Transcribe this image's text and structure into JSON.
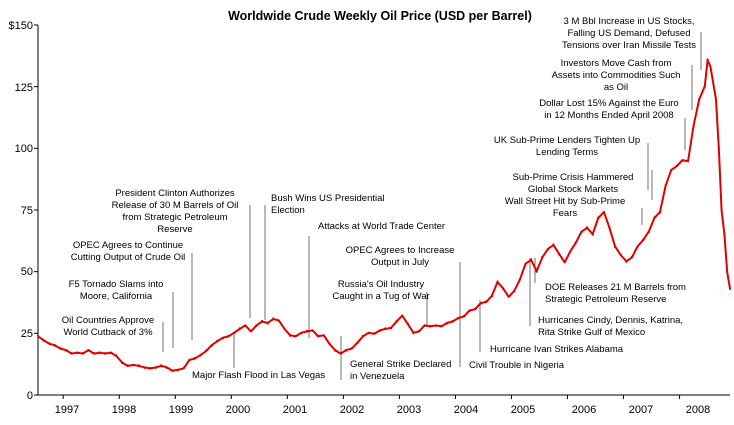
{
  "chart_data": {
    "type": "line",
    "title": "Worldwide Crude Weekly Oil Price (USD per Barrel)",
    "xlabel": "",
    "ylabel": "",
    "xlim": [
      1996.55,
      2008.9
    ],
    "ylim": [
      0,
      150
    ],
    "y_ticks": [
      {
        "value": 0,
        "label": "0"
      },
      {
        "value": 25,
        "label": "25"
      },
      {
        "value": 50,
        "label": "50"
      },
      {
        "value": 75,
        "label": "75"
      },
      {
        "value": 100,
        "label": "100"
      },
      {
        "value": 125,
        "label": "125"
      },
      {
        "value": 150,
        "label": "$150"
      }
    ],
    "x_ticks": [
      {
        "value": 1997,
        "label": "1997"
      },
      {
        "value": 1998,
        "label": "1998"
      },
      {
        "value": 1999,
        "label": "1999"
      },
      {
        "value": 2000,
        "label": "2000"
      },
      {
        "value": 2001,
        "label": "2001"
      },
      {
        "value": 2002,
        "label": "2002"
      },
      {
        "value": 2003,
        "label": "2003"
      },
      {
        "value": 2004,
        "label": "2004"
      },
      {
        "value": 2005,
        "label": "2005"
      },
      {
        "value": 2006,
        "label": "2006"
      },
      {
        "value": 2007,
        "label": "2007"
      },
      {
        "value": 2008,
        "label": "2008"
      }
    ],
    "grid": false,
    "series": [
      {
        "name": "Weekly crude oil price (USD/bbl)",
        "color": "#e00000",
        "x": [
          1996.55,
          1996.65,
          1996.75,
          1996.85,
          1996.95,
          1997.05,
          1997.15,
          1997.25,
          1997.35,
          1997.45,
          1997.55,
          1997.65,
          1997.75,
          1997.85,
          1997.95,
          1998.05,
          1998.15,
          1998.25,
          1998.35,
          1998.45,
          1998.55,
          1998.65,
          1998.75,
          1998.85,
          1998.95,
          1999.05,
          1999.15,
          1999.25,
          1999.35,
          1999.45,
          1999.55,
          1999.65,
          1999.75,
          1999.85,
          1999.95,
          2000.05,
          2000.15,
          2000.25,
          2000.35,
          2000.45,
          2000.55,
          2000.65,
          2000.75,
          2000.85,
          2000.95,
          2001.05,
          2001.15,
          2001.25,
          2001.35,
          2001.45,
          2001.55,
          2001.65,
          2001.75,
          2001.85,
          2001.95,
          2002.05,
          2002.15,
          2002.25,
          2002.35,
          2002.45,
          2002.55,
          2002.65,
          2002.75,
          2002.85,
          2002.95,
          2003.05,
          2003.15,
          2003.25,
          2003.35,
          2003.45,
          2003.55,
          2003.65,
          2003.75,
          2003.85,
          2003.95,
          2004.05,
          2004.15,
          2004.25,
          2004.35,
          2004.45,
          2004.55,
          2004.65,
          2004.75,
          2004.85,
          2004.95,
          2005.05,
          2005.15,
          2005.25,
          2005.35,
          2005.45,
          2005.55,
          2005.65,
          2005.75,
          2005.85,
          2005.95,
          2006.05,
          2006.15,
          2006.25,
          2006.35,
          2006.45,
          2006.55,
          2006.65,
          2006.75,
          2006.85,
          2006.95,
          2007.05,
          2007.15,
          2007.25,
          2007.35,
          2007.45,
          2007.55,
          2007.65,
          2007.75,
          2007.85,
          2007.95,
          2008.05,
          2008.15,
          2008.25,
          2008.35,
          2008.45,
          2008.5,
          2008.55,
          2008.65,
          2008.7,
          2008.75,
          2008.8,
          2008.85,
          2008.9
        ],
        "y": [
          24,
          22,
          21,
          20,
          19,
          18,
          17,
          17,
          17,
          18,
          17,
          17,
          17,
          17,
          16,
          13,
          12,
          12,
          12,
          11,
          11,
          11,
          12,
          11,
          10,
          10,
          11,
          14,
          15,
          16,
          18,
          20,
          22,
          23,
          24,
          25,
          27,
          28,
          26,
          28,
          30,
          29,
          31,
          30,
          27,
          24,
          24,
          25,
          26,
          26,
          24,
          24,
          21,
          18,
          17,
          18,
          19,
          21,
          24,
          25,
          25,
          26,
          27,
          27,
          30,
          32,
          29,
          25,
          26,
          28,
          28,
          28,
          28,
          29,
          30,
          31,
          32,
          34,
          35,
          37,
          38,
          40,
          46,
          43,
          40,
          42,
          47,
          53,
          55,
          50,
          56,
          59,
          61,
          57,
          54,
          58,
          62,
          66,
          68,
          65,
          72,
          74,
          68,
          60,
          57,
          54,
          56,
          60,
          63,
          66,
          72,
          74,
          85,
          91,
          93,
          95,
          95,
          109,
          120,
          125,
          136,
          133,
          120,
          100,
          75,
          65,
          50,
          43
        ]
      }
    ],
    "annotations": {
      "a_oil_countries": "Oil Countries Approve World Cutback of 3%",
      "a_f5_tornado": "F5 Tornado Slams into Moore, California",
      "a_opec_continue": "OPEC Agrees to Continue Cutting Output of Crude Oil",
      "a_clinton": "President Clinton Authorizes Release of 30 M Barrels of Oil from Strategic Petroleum Reserve",
      "a_bush": "Bush Wins US Presidential Election",
      "a_flash_flood": "Major Flash Flood in Las Vegas",
      "a_wtc": "Attacks at World Trade Center",
      "a_venezuela": "General Strike Declared in Venezuela",
      "a_russia": "Russia's Oil Industry Caught in a Tug of War",
      "a_opec_increase": "OPEC Agrees to Increase Output in July",
      "a_nigeria": "Civil Trouble in Nigeria",
      "a_ivan": "Hurricane Ivan Strikes Alabama",
      "a_katrina": "Hurricanes Cindy, Dennis, Katrina, Rita Strike Gulf of Mexico",
      "a_doe": "DOE Releases 21 M Barrels from Strategic Petroleum Reserve",
      "a_wall_street": "Wall Street Hit by Sub-Prime Fears",
      "a_subprime_global": "Sub-Prime Crisis Hammered Global Stock Markets",
      "a_uk_subprime": "UK Sub-Prime Lenders Tighten Up Lending Terms",
      "a_dollar": "Dollar Lost 15% Against the Euro in 12 Months Ended April 2008",
      "a_investors": "Investors Move Cash from Assets into Commodities Such as Oil",
      "a_3m_bbl": "3 M Bbl Increase in US Stocks, Falling US Demand, Defused Tensions over Iran Missile Tests"
    },
    "annotation_lines": {
      "a_oil_countries": [
        "Oil Countries Approve",
        "World Cutback of 3%"
      ],
      "a_f5_tornado": [
        "F5 Tornado Slams into",
        "Moore, California"
      ],
      "a_opec_continue": [
        "OPEC Agrees to Continue",
        "Cutting Output of Crude Oil"
      ],
      "a_clinton": [
        "President Clinton Authorizes",
        "Release of 30 M Barrels of Oil",
        "from Strategic Petroleum",
        "Reserve"
      ],
      "a_bush": [
        "Bush Wins US Presidential",
        "Election"
      ],
      "a_flash_flood": [
        "Major Flash Flood in Las Vegas"
      ],
      "a_wtc": [
        "Attacks at World Trade Center"
      ],
      "a_venezuela": [
        "General Strike Declared",
        "in Venezuela"
      ],
      "a_russia": [
        "Russia's Oil Industry",
        "Caught in a Tug of War"
      ],
      "a_opec_increase": [
        "OPEC Agrees to Increase",
        "Output in July"
      ],
      "a_nigeria": [
        "Civil Trouble in Nigeria"
      ],
      "a_ivan": [
        "Hurricane Ivan Strikes Alabama"
      ],
      "a_katrina": [
        "Hurricanes Cindy, Dennis, Katrina,",
        "Rita Strike Gulf of Mexico"
      ],
      "a_doe": [
        "DOE Releases 21 M Barrels from",
        "Strategic Petroleum Reserve"
      ],
      "a_wall_street": [
        "Wall Street Hit by Sub-Prime",
        "Fears"
      ],
      "a_subprime_global": [
        "Sub-Prime Crisis Hammered",
        "Global Stock Markets"
      ],
      "a_uk_subprime": [
        "UK Sub-Prime Lenders Tighten Up",
        "Lending Terms"
      ],
      "a_dollar": [
        "Dollar Lost 15% Against the Euro",
        "in 12 Months Ended April 2008"
      ],
      "a_investors": [
        "Investors Move Cash from",
        "Assets into Commodities Such",
        "as Oil"
      ],
      "a_3m_bbl": [
        "3 M Bbl Increase in US Stocks,",
        "Falling US Demand, Defused",
        "Tensions over Iran Missile Tests"
      ]
    },
    "annotation_colors": {
      "black": "#000000",
      "blue": "#1a1aa6",
      "green": "#2ca02c"
    }
  }
}
